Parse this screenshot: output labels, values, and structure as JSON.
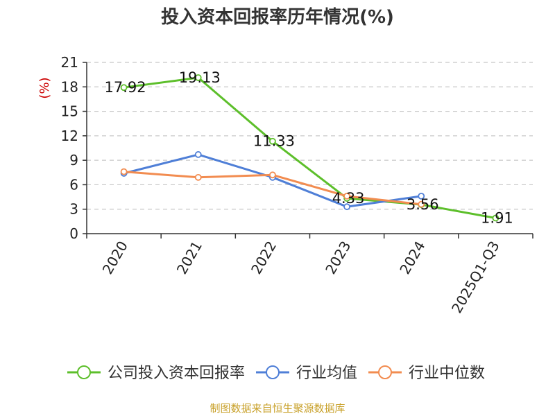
{
  "chart_data": {
    "type": "line",
    "title": "投入资本回报率历年情况(%)",
    "ylabel": "(%)",
    "xlabel": "",
    "categories": [
      "2020",
      "2021",
      "2022",
      "2023",
      "2024",
      "2025Q1-Q3"
    ],
    "ylim": [
      0,
      21
    ],
    "yticks": [
      0,
      3,
      6,
      9,
      12,
      15,
      18,
      21
    ],
    "grid": true,
    "legend_position": "bottom",
    "series": [
      {
        "name": "公司投入资本回报率",
        "color": "#5dbf2b",
        "values": [
          17.92,
          19.13,
          11.33,
          4.33,
          3.56,
          1.91
        ],
        "labels": [
          "17.92",
          "19.13",
          "11.33",
          "4.33",
          "3.56",
          "1.91"
        ]
      },
      {
        "name": "行业均值",
        "color": "#4f7fd7",
        "values": [
          7.4,
          9.7,
          6.9,
          3.3,
          4.6,
          null
        ]
      },
      {
        "name": "行业中位数",
        "color": "#f28c50",
        "values": [
          7.6,
          6.9,
          7.2,
          4.6,
          3.6,
          null
        ]
      }
    ]
  },
  "footer": {
    "source": "制图数据来自恒生聚源数据库"
  },
  "colors": {
    "grid": "#c8c8c8",
    "axis": "#333333",
    "ylabel": "#cc0000",
    "source": "#c8a028"
  }
}
